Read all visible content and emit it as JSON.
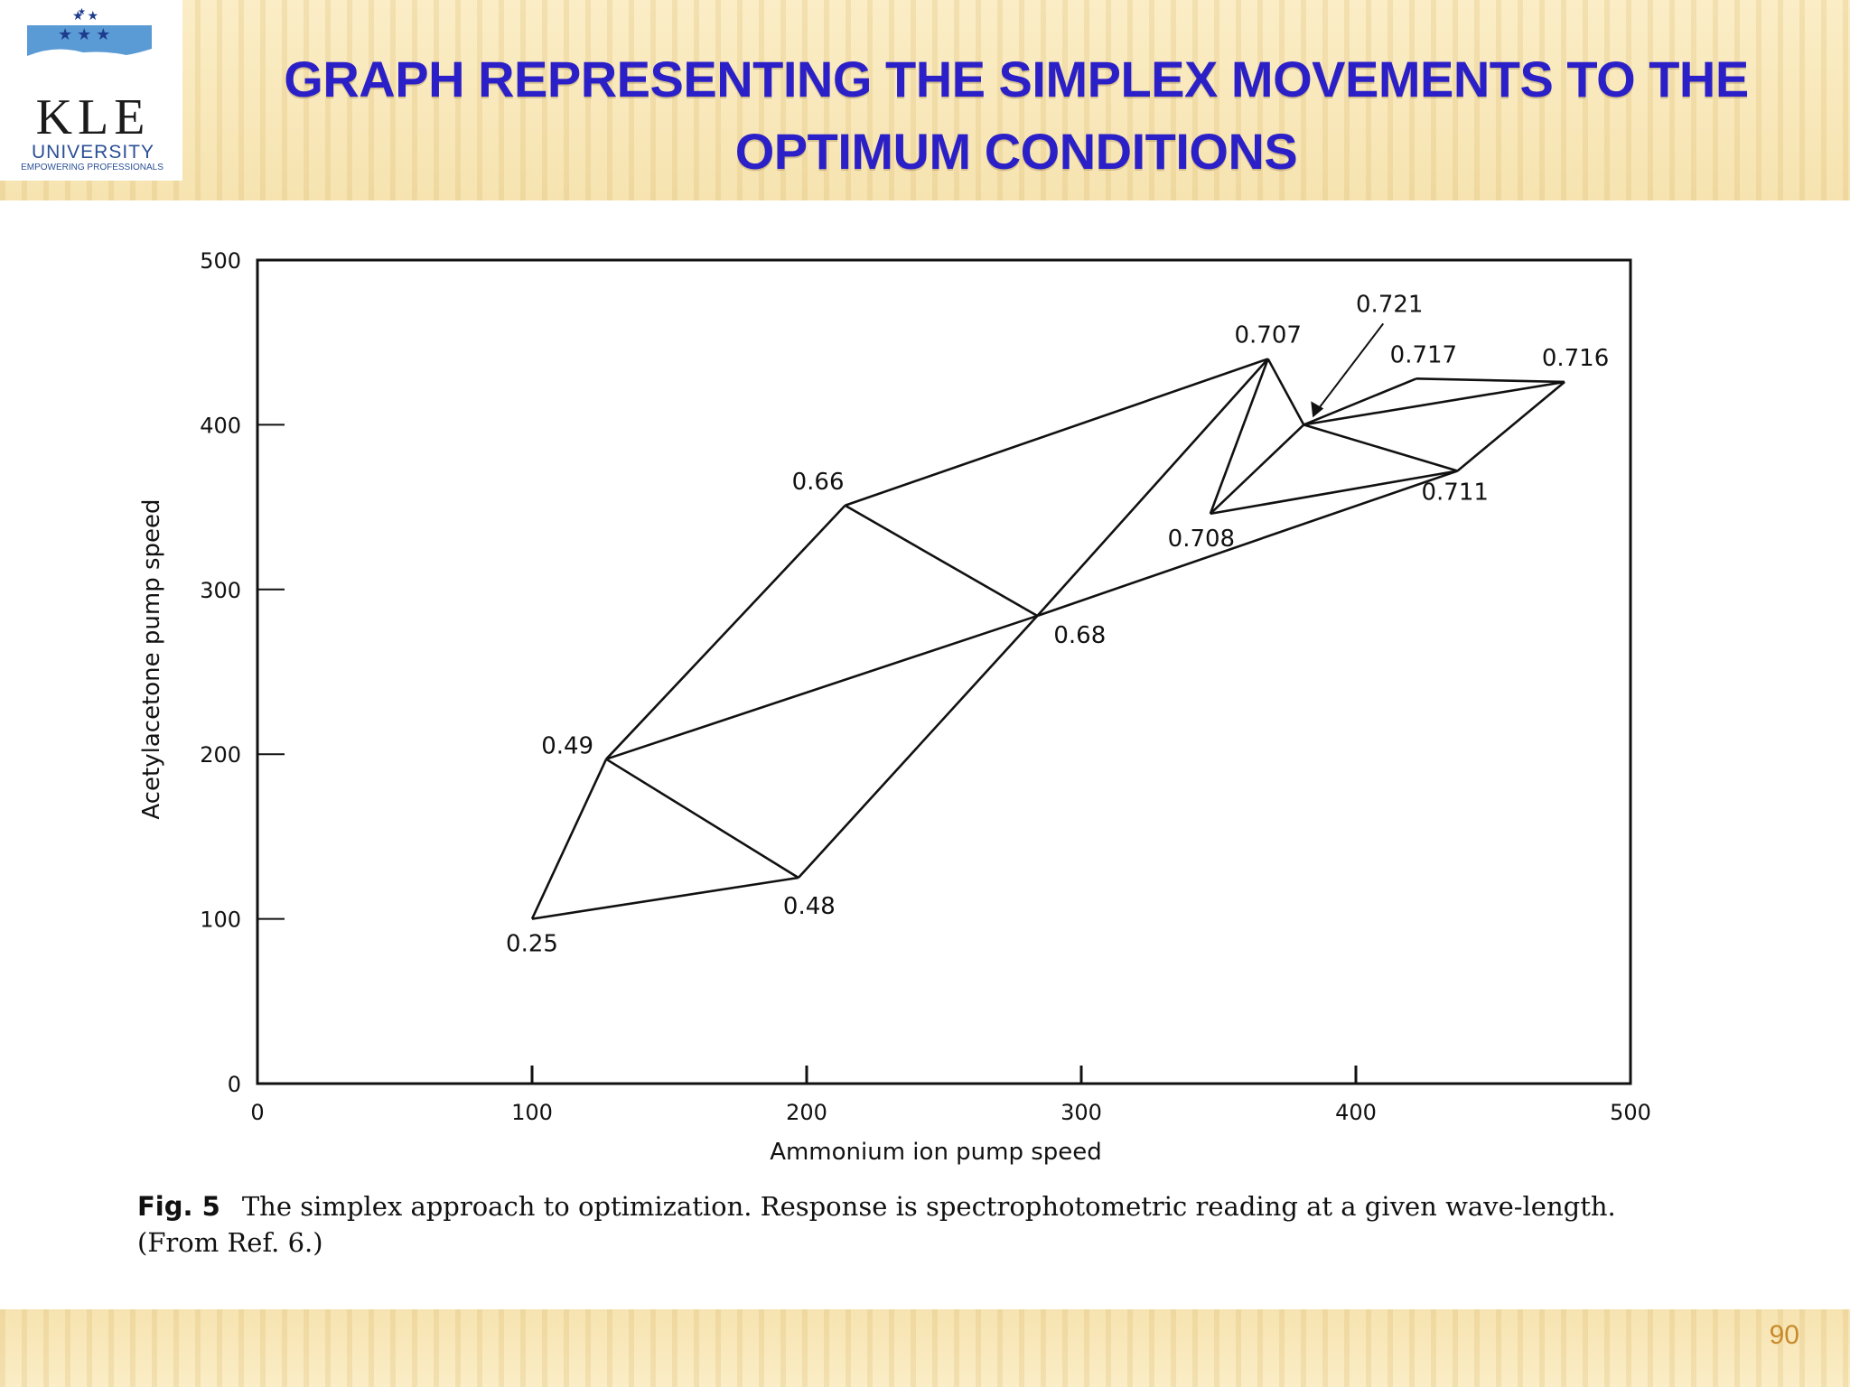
{
  "header": {
    "title_line1": "GRAPH REPRESENTING THE SIMPLEX MOVEMENTS TO THE",
    "title_line2": "OPTIMUM CONDITIONS",
    "logo_main": "KLE",
    "logo_sub": "UNIVERSITY",
    "logo_tag": "EMPOWERING PROFESSIONALS"
  },
  "colors": {
    "title": "#2b1fc7",
    "band": "#f6e3b0",
    "page_number": "#c88a2b",
    "logo_blue": "#5b9bd5"
  },
  "chart_data": {
    "type": "line",
    "xlabel": "Ammonium ion pump speed",
    "ylabel": "Acetylacetone pump speed",
    "xlim": [
      0,
      500
    ],
    "ylim": [
      0,
      500
    ],
    "xticks": [
      0,
      100,
      200,
      300,
      400,
      500
    ],
    "yticks": [
      0,
      100,
      200,
      300,
      400,
      500
    ],
    "grid": false,
    "points": [
      {
        "label": "0.25",
        "x": 100,
        "y": 100
      },
      {
        "label": "0.49",
        "x": 127,
        "y": 197
      },
      {
        "label": "0.48",
        "x": 197,
        "y": 125
      },
      {
        "label": "0.66",
        "x": 214,
        "y": 351
      },
      {
        "label": "0.68",
        "x": 284,
        "y": 284
      },
      {
        "label": "0.707",
        "x": 368,
        "y": 440
      },
      {
        "label": "0.708",
        "x": 347,
        "y": 346
      },
      {
        "label": "0.711",
        "x": 437,
        "y": 372
      },
      {
        "label": "0.721",
        "x": 381,
        "y": 400
      },
      {
        "label": "0.717",
        "x": 422,
        "y": 428
      },
      {
        "label": "0.716",
        "x": 476,
        "y": 426
      }
    ],
    "edges": [
      [
        "0.25",
        "0.49"
      ],
      [
        "0.25",
        "0.48"
      ],
      [
        "0.49",
        "0.48"
      ],
      [
        "0.49",
        "0.66"
      ],
      [
        "0.66",
        "0.68"
      ],
      [
        "0.49",
        "0.68"
      ],
      [
        "0.48",
        "0.68"
      ],
      [
        "0.68",
        "0.707"
      ],
      [
        "0.66",
        "0.707"
      ],
      [
        "0.68",
        "0.711"
      ],
      [
        "0.707",
        "0.708"
      ],
      [
        "0.708",
        "0.711"
      ],
      [
        "0.707",
        "0.721"
      ],
      [
        "0.708",
        "0.721"
      ],
      [
        "0.721",
        "0.711"
      ],
      [
        "0.721",
        "0.717"
      ],
      [
        "0.721",
        "0.716"
      ],
      [
        "0.711",
        "0.716"
      ],
      [
        "0.717",
        "0.716"
      ]
    ]
  },
  "caption": {
    "fig": "Fig. 5",
    "text": "The simplex approach to optimization. Response is spectrophotometric reading at a given wave-length. (From Ref. 6.)"
  },
  "page_number": "90"
}
